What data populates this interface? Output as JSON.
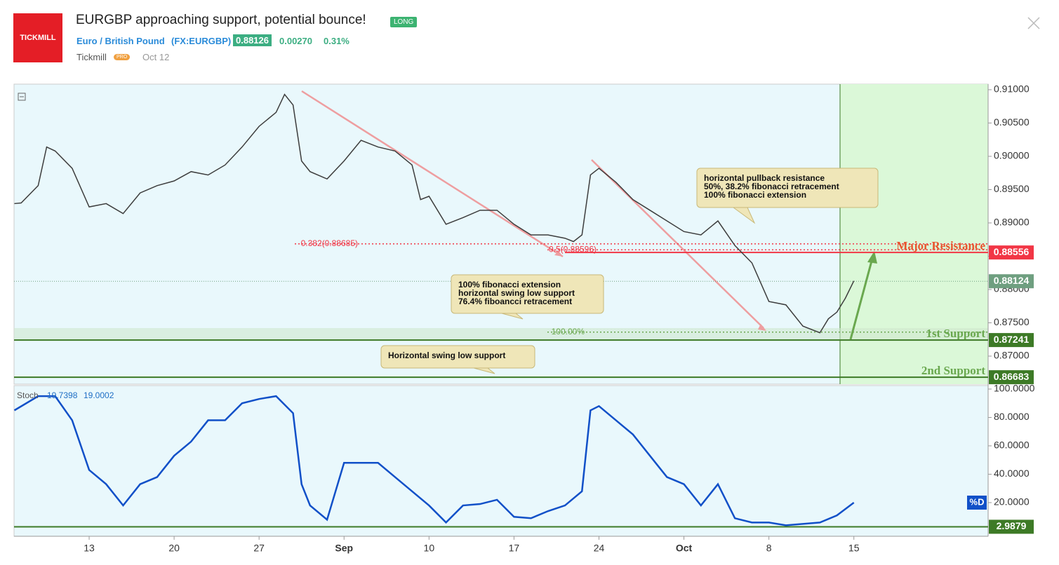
{
  "header": {
    "logo": "TICKMILL",
    "title": "EURGBP approaching support, potential bounce!",
    "badge": "LONG",
    "symbol_name": "Euro / British Pound",
    "symbol_code": "(FX:EURGBP)",
    "price": "0.88126",
    "change": "0.00270",
    "change_pct": "0.31%",
    "author": "Tickmill",
    "author_badge": "PRO",
    "date": "Oct 12"
  },
  "chart_data": [
    {
      "type": "line",
      "color": "#3d3d3d",
      "x": [
        0.6,
        1,
        2,
        2.5,
        3,
        4,
        5,
        6,
        7,
        8,
        9,
        10,
        11,
        12,
        13,
        14,
        15,
        16,
        16.5,
        17,
        17.5,
        18,
        19,
        20,
        21,
        22,
        23,
        24,
        24.5,
        25,
        26,
        27,
        28,
        29,
        30,
        31,
        32,
        33,
        33.5,
        34,
        34.5,
        35,
        36,
        37,
        38,
        39,
        40,
        41,
        42,
        43,
        44,
        45,
        46,
        47,
        48,
        48.5,
        49,
        49.5,
        50
      ],
      "values": [
        0.8929,
        0.893,
        0.8956,
        0.9014,
        0.9008,
        0.8982,
        0.8924,
        0.8929,
        0.8914,
        0.8945,
        0.8956,
        0.8963,
        0.8977,
        0.8972,
        0.8987,
        0.9014,
        0.9045,
        0.9066,
        0.9093,
        0.9077,
        0.8993,
        0.8977,
        0.8966,
        0.8993,
        0.9024,
        0.9014,
        0.9008,
        0.8987,
        0.8935,
        0.894,
        0.8898,
        0.8908,
        0.8919,
        0.8919,
        0.8898,
        0.8882,
        0.8882,
        0.8877,
        0.8872,
        0.8882,
        0.8972,
        0.8982,
        0.8961,
        0.8935,
        0.8919,
        0.8903,
        0.8887,
        0.8882,
        0.8903,
        0.8866,
        0.884,
        0.8782,
        0.8777,
        0.8745,
        0.8735,
        0.8756,
        0.8766,
        0.8787,
        0.8813
      ],
      "xlim": [
        0.58,
        57.9
      ],
      "xticks": [
        {
          "value": 5,
          "label": "13"
        },
        {
          "value": 10,
          "label": "20"
        },
        {
          "value": 15,
          "label": "27"
        },
        {
          "value": 20,
          "label": "Sep"
        },
        {
          "value": 25,
          "label": "10"
        },
        {
          "value": 30,
          "label": "17"
        },
        {
          "value": 35,
          "label": "24"
        },
        {
          "value": 40,
          "label": "Oct"
        },
        {
          "value": 45,
          "label": "8"
        },
        {
          "value": 50,
          "label": "15"
        }
      ],
      "ylim": [
        0.86579,
        0.91084
      ],
      "yticks": [
        {
          "value": 0.91,
          "label": "0.91000"
        },
        {
          "value": 0.905,
          "label": "0.90500"
        },
        {
          "value": 0.9,
          "label": "0.90000"
        },
        {
          "value": 0.895,
          "label": "0.89500"
        },
        {
          "value": 0.89,
          "label": "0.89000"
        },
        {
          "value": 0.885,
          "label": "0.88500"
        },
        {
          "value": 0.88,
          "label": "0.88000"
        },
        {
          "value": 0.875,
          "label": "0.87500"
        },
        {
          "value": 0.87,
          "label": "0.87000"
        }
      ],
      "levels": [
        {
          "value": 0.88556,
          "color": "#f23645",
          "name": "Major Resistance"
        },
        {
          "value": 0.88124,
          "color": "#6f9f80"
        },
        {
          "value": 0.87241,
          "color": "#3d7a26",
          "name": "1st Support"
        },
        {
          "value": 0.86683,
          "color": "#3d7a26",
          "name": "2nd Support"
        }
      ],
      "fib_lines": [
        {
          "value": 0.88685,
          "label": "0.382(0.88685)",
          "color": "#f23645"
        },
        {
          "value": 0.88596,
          "label": "0.5(0.88596)",
          "color": "#f23645"
        },
        {
          "value": 0.8736,
          "label": "100.00%",
          "color": "#6aa84f"
        }
      ],
      "notes": [
        [
          "horizontal pullback resistance",
          "50%, 38.2% fibonacci retracement",
          "100% fibonacci extension"
        ],
        [
          "100% fibonacci extension",
          "horizontal swing low support",
          "76.4% fiboancci retracement"
        ],
        [
          "Horizontal swing low support"
        ]
      ]
    },
    {
      "type": "line",
      "title": "Stoch",
      "color": "#1150c8",
      "readouts": [
        19.7398,
        19.0002
      ],
      "tag": "%D",
      "x": [
        0.6,
        2,
        3,
        4,
        5,
        6,
        7,
        8,
        9,
        10,
        11,
        12,
        13,
        14,
        15,
        16,
        17,
        17.5,
        18,
        19,
        20,
        21,
        22,
        23,
        24,
        25,
        26,
        27,
        28,
        29,
        30,
        31,
        32,
        33,
        34,
        34.5,
        35,
        36,
        37,
        38,
        39,
        40,
        41,
        42,
        43,
        44,
        45,
        46,
        47,
        48,
        49,
        50
      ],
      "values": [
        85,
        95,
        95,
        78,
        43,
        33,
        18,
        33,
        38,
        53,
        63,
        78,
        78,
        90,
        93,
        95,
        83,
        33,
        18,
        8,
        48,
        48,
        48,
        38,
        28,
        18,
        6,
        18,
        19,
        22,
        10,
        9,
        14,
        18,
        28,
        85,
        88,
        78,
        68,
        53,
        38,
        33,
        18,
        33,
        9,
        6,
        6,
        4,
        5,
        6,
        11,
        20
      ],
      "xlim": [
        0.58,
        57.9
      ],
      "ylim": [
        -3.7,
        102.47
      ],
      "yticks": [
        {
          "value": 100,
          "label": "100.0000"
        },
        {
          "value": 80,
          "label": "80.0000"
        },
        {
          "value": 60,
          "label": "60.0000"
        },
        {
          "value": 40,
          "label": "40.0000"
        },
        {
          "value": 20,
          "label": "20.0000"
        }
      ],
      "levels": [
        {
          "value": 2.9879,
          "color": "#3d7a26"
        }
      ]
    }
  ]
}
